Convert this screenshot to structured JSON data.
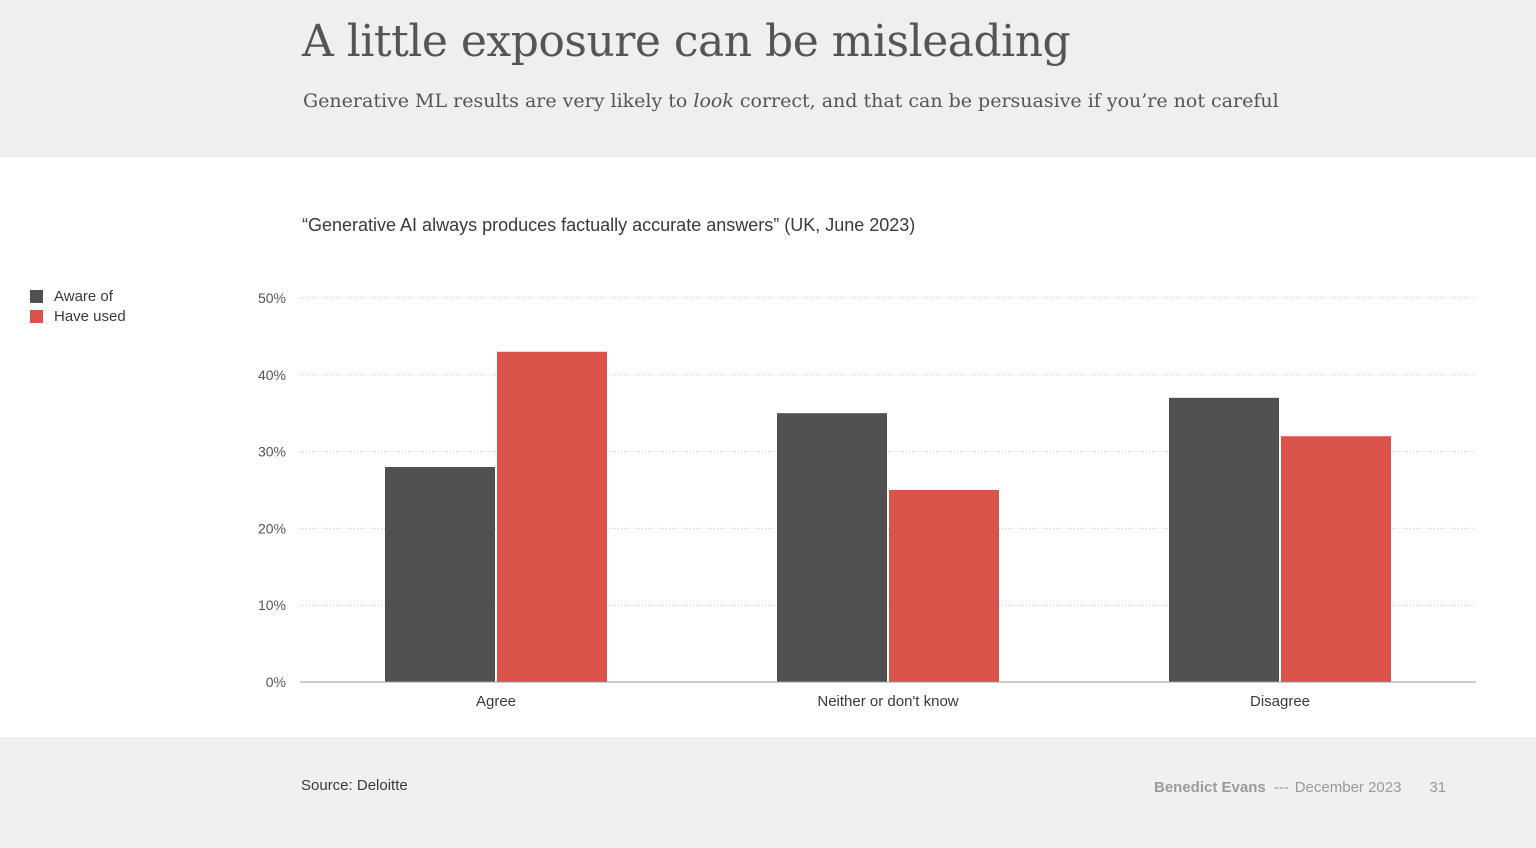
{
  "slide": {
    "title": "A little exposure can be misleading",
    "subtitle_before": "Generative ML results are very likely to ",
    "subtitle_emphasis": "look",
    "subtitle_after": " correct, and that can be persuasive if you’re not careful"
  },
  "chart_data": {
    "type": "bar",
    "title": "“Generative AI always produces factually accurate answers” (UK, June 2023)",
    "categories": [
      "Agree",
      "Neither or don't know",
      "Disagree"
    ],
    "series": [
      {
        "name": "Aware of",
        "color": "#505050",
        "values": [
          28,
          35,
          37
        ]
      },
      {
        "name": "Have used",
        "color": "#d9534a",
        "values": [
          43,
          25,
          32
        ]
      }
    ],
    "ylim": [
      0,
      50
    ],
    "yticks": [
      0,
      10,
      20,
      30,
      40,
      50
    ],
    "ytick_labels": [
      "0%",
      "10%",
      "20%",
      "30%",
      "40%",
      "50%"
    ],
    "grid": true,
    "legend_position": "left"
  },
  "footer": {
    "source": "Source: Deloitte",
    "author": "Benedict Evans",
    "separator": "---",
    "date": "December 2023",
    "page_number": "31"
  }
}
